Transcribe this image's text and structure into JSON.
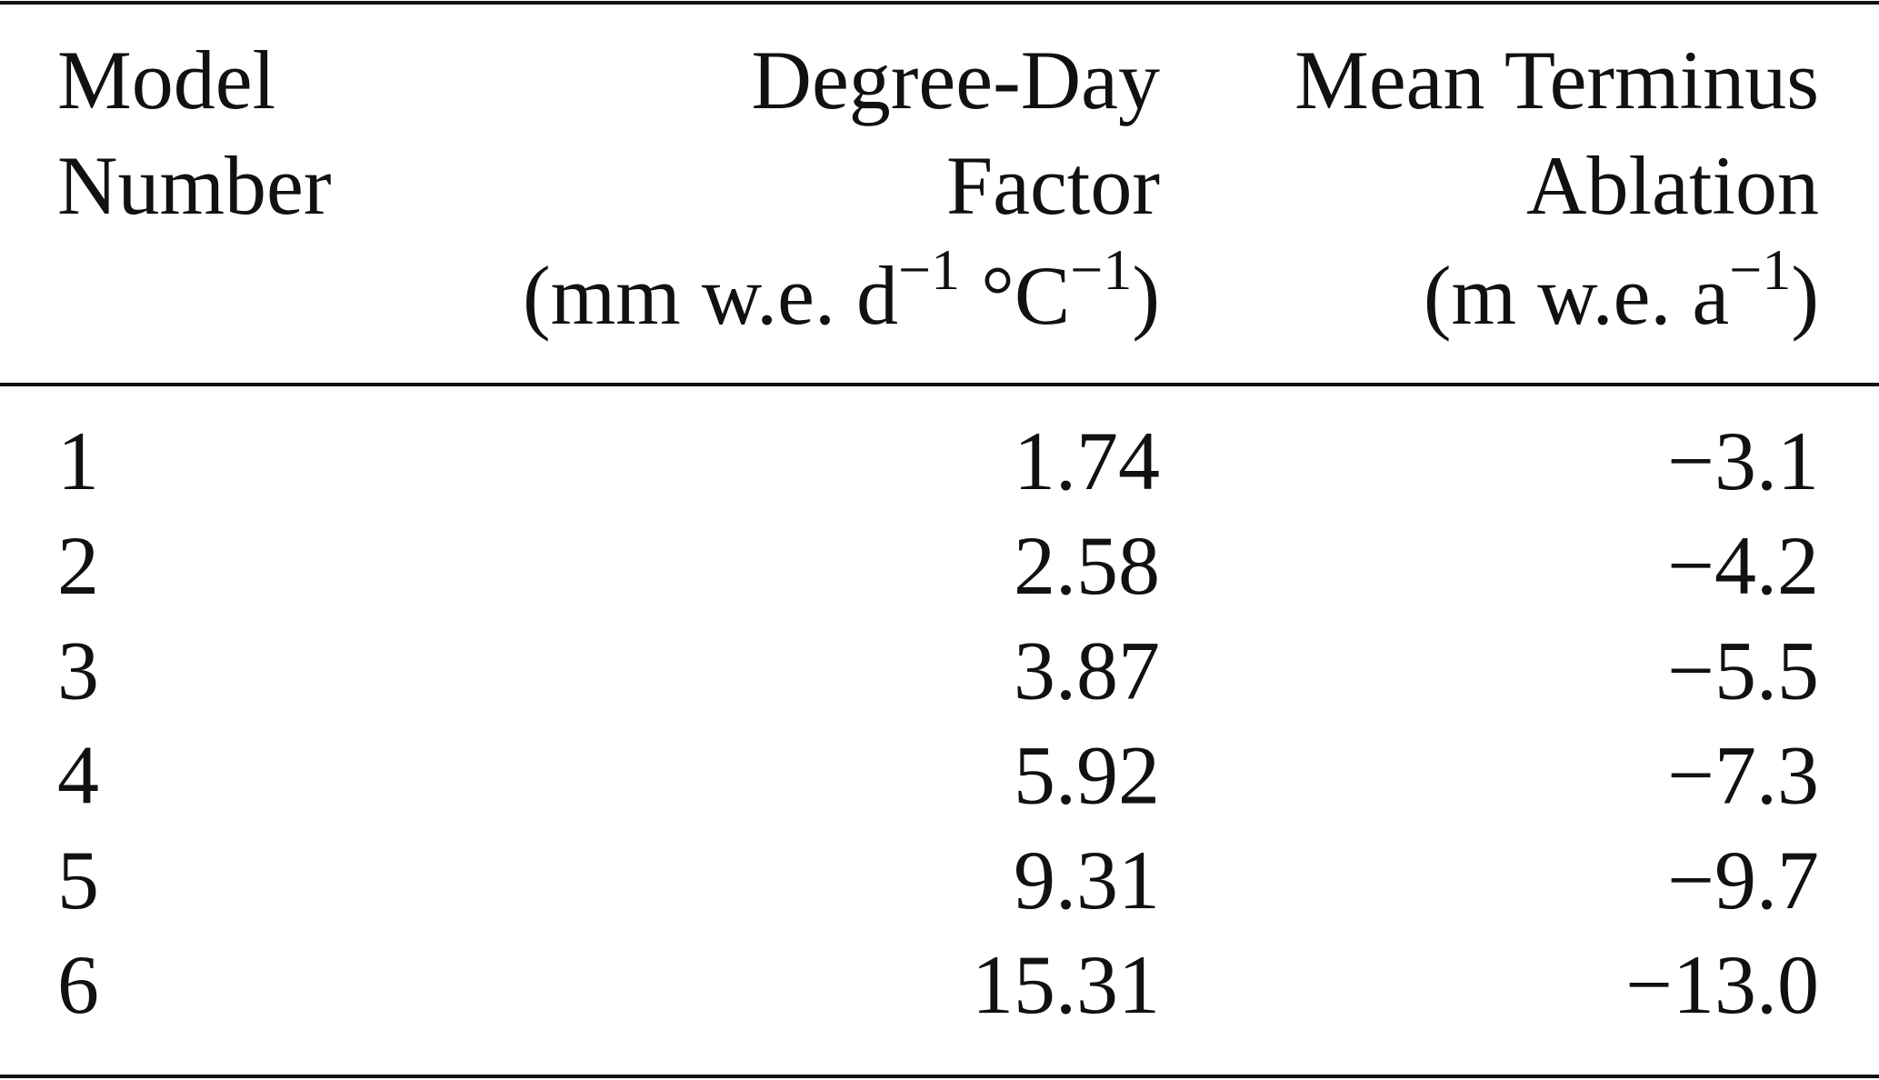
{
  "table": {
    "header": [
      {
        "lines": [
          "Model",
          "Number"
        ],
        "unit": []
      },
      {
        "lines": [
          "Degree-Day",
          "Factor"
        ],
        "unit": [
          "(mm w.e. d",
          "−1",
          " °C",
          "−1",
          ")"
        ]
      },
      {
        "lines": [
          "Mean Terminus",
          "Ablation"
        ],
        "unit": [
          "(m w.e. a",
          "−1",
          ")"
        ]
      }
    ],
    "rows": [
      [
        "1",
        "1.74",
        "−3.1"
      ],
      [
        "2",
        "2.58",
        "−4.2"
      ],
      [
        "3",
        "3.87",
        "−5.5"
      ],
      [
        "4",
        "5.92",
        "−7.3"
      ],
      [
        "5",
        "9.31",
        "−9.7"
      ],
      [
        "6",
        "15.31",
        "−13.0"
      ]
    ]
  }
}
